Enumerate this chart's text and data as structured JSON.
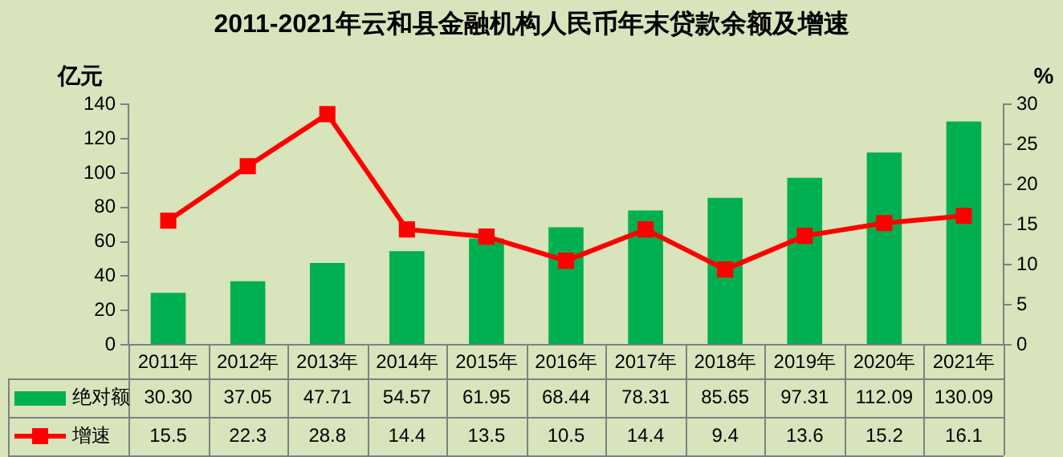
{
  "chart_data": {
    "type": "bar",
    "title": "2011-2021年云和县金融机构人民币年末贷款余额及增速",
    "ylabel": "亿元",
    "y2label": "%",
    "categories": [
      "2011年",
      "2012年",
      "2013年",
      "2014年",
      "2015年",
      "2016年",
      "2017年",
      "2018年",
      "2019年",
      "2020年",
      "2021年"
    ],
    "series": [
      {
        "name": "绝对额",
        "color": "#00b050",
        "values": [
          30.3,
          37.05,
          47.71,
          54.57,
          61.95,
          68.44,
          78.31,
          85.65,
          97.31,
          112.09,
          130.09
        ],
        "value_labels": [
          "30.30",
          "37.05",
          "47.71",
          "54.57",
          "61.95",
          "68.44",
          "78.31",
          "85.65",
          "97.31",
          "112.09",
          "130.09"
        ]
      },
      {
        "name": "增速",
        "type": "line",
        "axis": "y2",
        "color": "#ff0000",
        "marker": "square",
        "values": [
          15.5,
          22.3,
          28.8,
          14.4,
          13.5,
          10.5,
          14.4,
          9.4,
          13.6,
          15.2,
          16.1
        ]
      }
    ],
    "ylim": [
      0,
      140
    ],
    "yticks": [
      0,
      20,
      40,
      60,
      80,
      100,
      120,
      140
    ],
    "y2lim": [
      0,
      30
    ],
    "y2ticks": [
      0,
      5,
      10,
      15,
      20,
      25,
      30
    ],
    "data_labels": true,
    "legend": "bottom",
    "grid": false
  }
}
